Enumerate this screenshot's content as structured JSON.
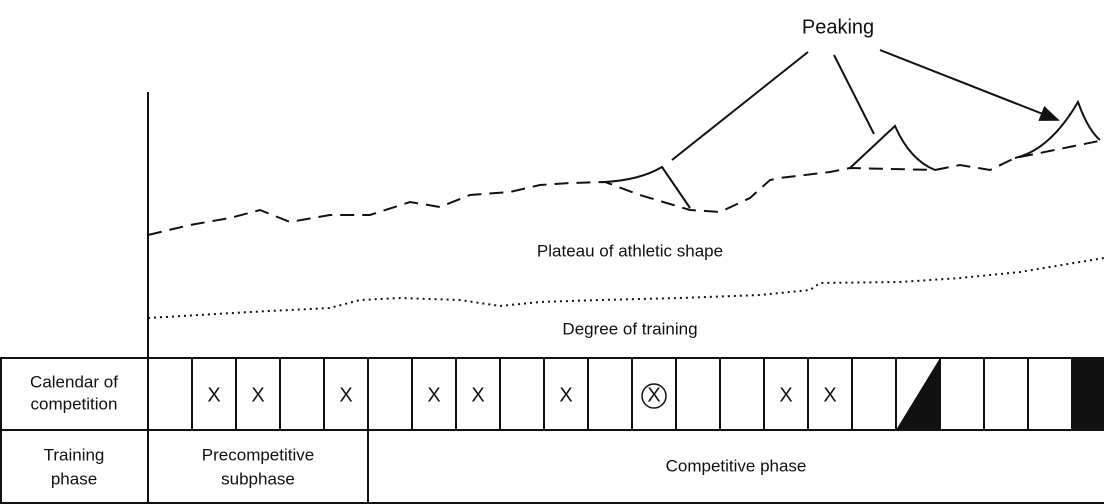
{
  "annotation": "Peaking",
  "curves": {
    "plateau": "Plateau of athletic shape",
    "training": "Degree of training"
  },
  "rows": {
    "calendar": {
      "label": [
        "Calendar of",
        "competition"
      ],
      "cells": [
        null,
        {
          "mark": "X"
        },
        {
          "mark": "X"
        },
        null,
        {
          "mark": "X"
        },
        null,
        {
          "mark": "X"
        },
        {
          "mark": "X"
        },
        null,
        {
          "mark": "X"
        },
        null,
        {
          "mark": "X",
          "circled": true
        },
        null,
        null,
        {
          "mark": "X"
        },
        {
          "mark": "X"
        },
        null,
        {
          "fill": "half"
        },
        null,
        null,
        null,
        {
          "fill": "full"
        }
      ]
    },
    "phase": {
      "label": [
        "Training",
        "phase"
      ],
      "phases": [
        [
          "Precompetitive",
          "subphase"
        ],
        [
          "Competitive phase"
        ]
      ]
    }
  }
}
